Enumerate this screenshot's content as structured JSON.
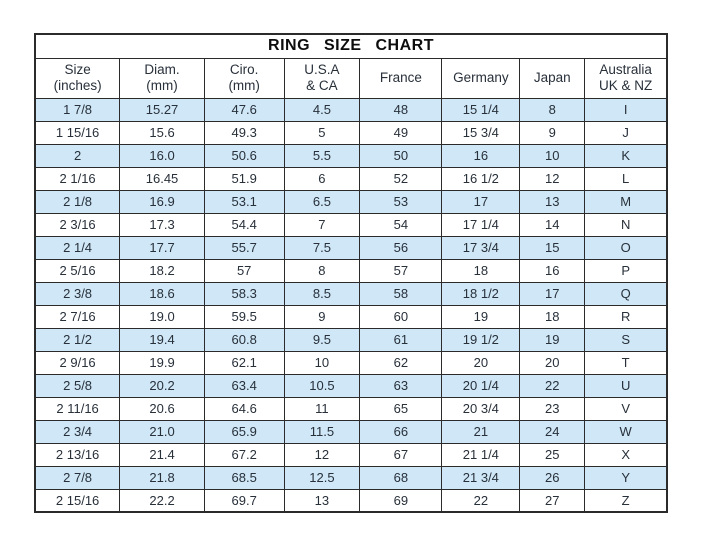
{
  "title": "RING  SIZE  CHART",
  "colors": {
    "row_highlight": "#cfe7f6",
    "border": "#2b2b2b",
    "text": "#28303a",
    "background": "#ffffff"
  },
  "chart_data": {
    "type": "table",
    "title": "RING SIZE CHART",
    "columns": [
      {
        "key": "size-inches",
        "lines": [
          "Size",
          "(inches)"
        ]
      },
      {
        "key": "diam-mm",
        "lines": [
          "Diam.",
          "(mm)"
        ]
      },
      {
        "key": "ciro-mm",
        "lines": [
          "Ciro.",
          "(mm)"
        ]
      },
      {
        "key": "usa-ca",
        "lines": [
          "U.S.A",
          "& CA"
        ]
      },
      {
        "key": "france",
        "lines": [
          "France"
        ]
      },
      {
        "key": "germany",
        "lines": [
          "Germany"
        ]
      },
      {
        "key": "japan",
        "lines": [
          "Japan"
        ]
      },
      {
        "key": "australia-uk-nz",
        "lines": [
          "Australia",
          "UK & NZ"
        ]
      }
    ],
    "rows": [
      [
        "1 7/8",
        "15.27",
        "47.6",
        "4.5",
        "48",
        "15 1/4",
        "8",
        "I"
      ],
      [
        "1 15/16",
        "15.6",
        "49.3",
        "5",
        "49",
        "15 3/4",
        "9",
        "J"
      ],
      [
        "2",
        "16.0",
        "50.6",
        "5.5",
        "50",
        "16",
        "10",
        "K"
      ],
      [
        "2 1/16",
        "16.45",
        "51.9",
        "6",
        "52",
        "16 1/2",
        "12",
        "L"
      ],
      [
        "2 1/8",
        "16.9",
        "53.1",
        "6.5",
        "53",
        "17",
        "13",
        "M"
      ],
      [
        "2 3/16",
        "17.3",
        "54.4",
        "7",
        "54",
        "17 1/4",
        "14",
        "N"
      ],
      [
        "2 1/4",
        "17.7",
        "55.7",
        "7.5",
        "56",
        "17 3/4",
        "15",
        "O"
      ],
      [
        "2 5/16",
        "18.2",
        "57",
        "8",
        "57",
        "18",
        "16",
        "P"
      ],
      [
        "2 3/8",
        "18.6",
        "58.3",
        "8.5",
        "58",
        "18 1/2",
        "17",
        "Q"
      ],
      [
        "2 7/16",
        "19.0",
        "59.5",
        "9",
        "60",
        "19",
        "18",
        "R"
      ],
      [
        "2 1/2",
        "19.4",
        "60.8",
        "9.5",
        "61",
        "19 1/2",
        "19",
        "S"
      ],
      [
        "2 9/16",
        "19.9",
        "62.1",
        "10",
        "62",
        "20",
        "20",
        "T"
      ],
      [
        "2 5/8",
        "20.2",
        "63.4",
        "10.5",
        "63",
        "20 1/4",
        "22",
        "U"
      ],
      [
        "2 11/16",
        "20.6",
        "64.6",
        "11",
        "65",
        "20 3/4",
        "23",
        "V"
      ],
      [
        "2 3/4",
        "21.0",
        "65.9",
        "11.5",
        "66",
        "21",
        "24",
        "W"
      ],
      [
        "2 13/16",
        "21.4",
        "67.2",
        "12",
        "67",
        "21 1/4",
        "25",
        "X"
      ],
      [
        "2 7/8",
        "21.8",
        "68.5",
        "12.5",
        "68",
        "21 3/4",
        "26",
        "Y"
      ],
      [
        "2 15/16",
        "22.2",
        "69.7",
        "13",
        "69",
        "22",
        "27",
        "Z"
      ]
    ]
  }
}
